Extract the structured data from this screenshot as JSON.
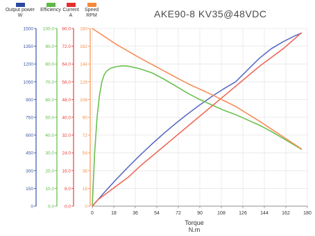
{
  "chart_data": {
    "type": "line",
    "title": "AKE90-8 KV35@48VDC",
    "xlabel_lines": [
      "Torque",
      "N.m"
    ],
    "x_ticks": [
      "0",
      "18",
      "36",
      "54",
      "72",
      "90",
      "108",
      "126",
      "144",
      "162",
      "180"
    ],
    "xlim": [
      0,
      180
    ],
    "grid": true,
    "legend_position": "top-left",
    "axes": [
      {
        "id": "power",
        "legend_lines": [
          "Output power",
          "W"
        ],
        "color": "#3a53a4",
        "ylim": [
          0,
          1500
        ],
        "ticks": [
          "0",
          "150",
          "300",
          "450",
          "600",
          "750",
          "900",
          "1050",
          "1200",
          "1350",
          "1500"
        ]
      },
      {
        "id": "eff",
        "legend_lines": [
          "Efficiency",
          ""
        ],
        "color": "#5dba47",
        "ylim": [
          0,
          100
        ],
        "ticks": [
          "0.0",
          "10.0",
          "20.0",
          "30.0",
          "40.0",
          "50.0",
          "60.0",
          "70.0",
          "80.0",
          "90.0",
          "100.0"
        ]
      },
      {
        "id": "current",
        "legend_lines": [
          "Current",
          "A"
        ],
        "color": "#e8413a",
        "ylim": [
          0,
          80
        ],
        "ticks": [
          "0.0",
          "8.0",
          "16.0",
          "24.0",
          "32.0",
          "40.0",
          "48.0",
          "56.0",
          "64.0",
          "72.0",
          "80.0"
        ]
      },
      {
        "id": "rpm",
        "legend_lines": [
          "Speed",
          "RPM"
        ],
        "color": "#f7914d",
        "ylim": [
          0,
          180
        ],
        "ticks": [
          "0",
          "18",
          "36",
          "54",
          "72",
          "90",
          "108",
          "126",
          "144",
          "162",
          "180"
        ]
      }
    ],
    "series": [
      {
        "axis": "power",
        "color": "#5a6cc4",
        "x": [
          0,
          10,
          20,
          30,
          40,
          50,
          60,
          70,
          80,
          90,
          100,
          110,
          120,
          130,
          140,
          150,
          160,
          170,
          175
        ],
        "y": [
          0,
          115,
          225,
          330,
          430,
          525,
          615,
          700,
          780,
          855,
          925,
          990,
          1050,
          1150,
          1250,
          1330,
          1390,
          1440,
          1460
        ]
      },
      {
        "axis": "eff",
        "color": "#6ac04f",
        "x": [
          0,
          2,
          4,
          6,
          8,
          10,
          12,
          15,
          20,
          25,
          30,
          40,
          50,
          60,
          70,
          80,
          90,
          100,
          110,
          120,
          130,
          140,
          150,
          160,
          170,
          175
        ],
        "y": [
          0,
          30,
          50,
          62,
          70,
          74,
          76,
          77.5,
          78.5,
          79,
          78.8,
          77.3,
          75,
          71.5,
          67.5,
          63.5,
          60,
          57,
          54,
          51.5,
          48.5,
          45.5,
          42,
          38,
          34,
          32
        ]
      },
      {
        "axis": "current",
        "color": "#ec6a5a",
        "x": [
          0,
          5,
          10,
          20,
          30,
          40,
          60,
          80,
          100,
          120,
          140,
          160,
          175
        ],
        "y": [
          0,
          3,
          5,
          9,
          13,
          18,
          27,
          36,
          45,
          54,
          63,
          71,
          78
        ]
      },
      {
        "axis": "rpm",
        "color": "#f78d56",
        "x": [
          0,
          20,
          40,
          60,
          80,
          100,
          120,
          140,
          160,
          175
        ],
        "y": [
          180,
          164,
          150,
          137,
          124,
          113,
          101,
          86,
          70,
          58
        ]
      }
    ]
  }
}
